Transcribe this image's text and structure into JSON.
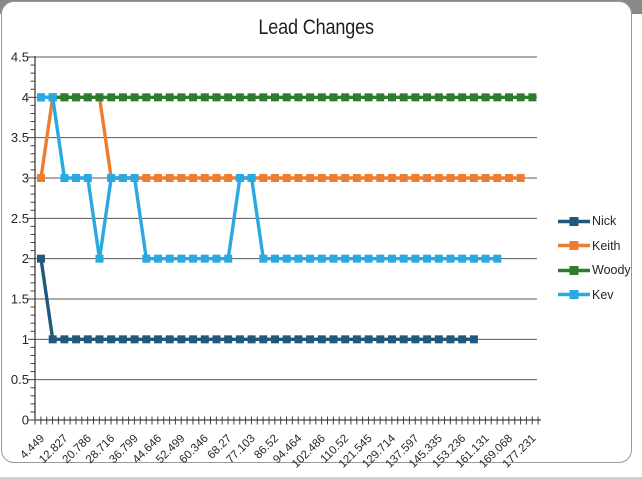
{
  "window": {
    "backdrop_color": "#8A8A8A",
    "card_border_color": "#9A9A9A",
    "bottom_edge_color": "#CFCFCF"
  },
  "chart_data": {
    "type": "line",
    "title": "Lead Changes",
    "xlabel": "",
    "ylabel": "",
    "ylim": [
      0,
      4.5
    ],
    "ytick_step": 0.5,
    "y_minor_tick_step": 0.1,
    "grid": "horizontal",
    "legend_position": "right",
    "line_style": "solid-with-square-markers",
    "x_tick_label_rotation": 45,
    "n_points": 43,
    "x_labels_every": 2,
    "categories": [
      "4.449",
      "12.827",
      "20.786",
      "28.716",
      "36.799",
      "44.646",
      "52.499",
      "60.346",
      "68.27",
      "77.103",
      "86.52",
      "94.464",
      "102.486",
      "110.52",
      "121.545",
      "129.714",
      "137.597",
      "145.335",
      "153.236",
      "161.131",
      "169.068",
      "177.231"
    ],
    "series": [
      {
        "name": "Nick",
        "color": "#21587B",
        "values": [
          2,
          1,
          1,
          1,
          1,
          1,
          1,
          1,
          1,
          1,
          1,
          1,
          1,
          1,
          1,
          1,
          1,
          1,
          1,
          1,
          1,
          1,
          1,
          1,
          1,
          1,
          1,
          1,
          1,
          1,
          1,
          1,
          1,
          1,
          1,
          1,
          1,
          1,
          null,
          null,
          null,
          null,
          null
        ]
      },
      {
        "name": "Keith",
        "color": "#ED7D31",
        "values": [
          3,
          4,
          4,
          4,
          4,
          4,
          3,
          3,
          3,
          3,
          3,
          3,
          3,
          3,
          3,
          3,
          3,
          3,
          3,
          3,
          3,
          3,
          3,
          3,
          3,
          3,
          3,
          3,
          3,
          3,
          3,
          3,
          3,
          3,
          3,
          3,
          3,
          3,
          3,
          3,
          3,
          3,
          null
        ]
      },
      {
        "name": "Woody",
        "color": "#2E7D2E",
        "values": [
          4,
          4,
          4,
          4,
          4,
          4,
          4,
          4,
          4,
          4,
          4,
          4,
          4,
          4,
          4,
          4,
          4,
          4,
          4,
          4,
          4,
          4,
          4,
          4,
          4,
          4,
          4,
          4,
          4,
          4,
          4,
          4,
          4,
          4,
          4,
          4,
          4,
          4,
          4,
          4,
          4,
          4,
          4
        ]
      },
      {
        "name": "Kev",
        "color": "#2AA9E0",
        "values": [
          4,
          4,
          3,
          3,
          3,
          2,
          3,
          3,
          3,
          2,
          2,
          2,
          2,
          2,
          2,
          2,
          2,
          3,
          3,
          2,
          2,
          2,
          2,
          2,
          2,
          2,
          2,
          2,
          2,
          2,
          2,
          2,
          2,
          2,
          2,
          2,
          2,
          2,
          2,
          2,
          null,
          null,
          null
        ]
      }
    ],
    "axis_color": "#404040",
    "gridline_color": "#595959",
    "tick_label_color": "#262626"
  }
}
